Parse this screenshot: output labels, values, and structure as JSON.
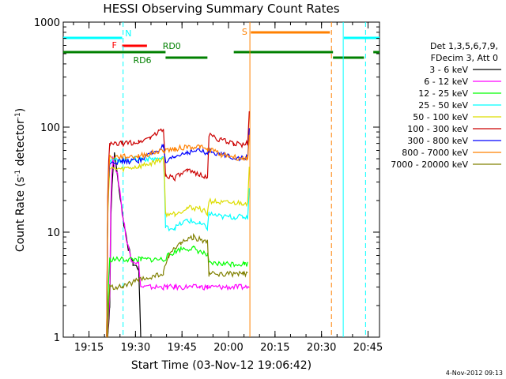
{
  "chart_data": {
    "type": "line",
    "title": "HESSI Observing Summary Count Rates",
    "xlabel": "Start Time (03-Nov-12 19:06:42)",
    "ylabel_main": "Count Rate (s",
    "ylabel_sup1": "-1",
    "ylabel_mid": " detector",
    "ylabel_sup2": "-1",
    "ylabel_end": ")",
    "y_scale": "log",
    "ylim": [
      1,
      1000
    ],
    "xlim_minutes": [
      0,
      102
    ],
    "x_ticks": [
      {
        "label": "19:15",
        "min": 8.3
      },
      {
        "label": "19:30",
        "min": 23.3
      },
      {
        "label": "19:45",
        "min": 38.3
      },
      {
        "label": "20:00",
        "min": 53.3
      },
      {
        "label": "20:15",
        "min": 68.3
      },
      {
        "label": "20:30",
        "min": 83.3
      },
      {
        "label": "20:45",
        "min": 98.3
      }
    ],
    "y_ticks": [
      {
        "label": "1",
        "value": 1
      },
      {
        "label": "10",
        "value": 10
      },
      {
        "label": "100",
        "value": 100
      },
      {
        "label": "1000",
        "value": 1000
      }
    ],
    "legend_header": [
      "Det 1,3,5,6,7,9,",
      "FDecim 3, Att 0"
    ],
    "timestamp": "4-Nov-2012 09:13",
    "series": [
      {
        "name": "3 - 6 keV",
        "color": "#000000",
        "points": [
          [
            14,
            0
          ],
          [
            15,
            2
          ],
          [
            16.5,
            55
          ],
          [
            18,
            25
          ],
          [
            19.5,
            12
          ],
          [
            21,
            7
          ],
          [
            22.5,
            5
          ],
          [
            24.3,
            4.5
          ],
          [
            25,
            0
          ]
        ]
      },
      {
        "name": "6 - 12 keV",
        "color": "#ff00ff",
        "points": [
          [
            14,
            0
          ],
          [
            15,
            2.5
          ],
          [
            16,
            50
          ],
          [
            17.5,
            35
          ],
          [
            19,
            15
          ],
          [
            20.5,
            8
          ],
          [
            22,
            5.5
          ],
          [
            24.3,
            5
          ],
          [
            25,
            3
          ],
          [
            32.3,
            3
          ],
          [
            33.5,
            3
          ],
          [
            36,
            3
          ],
          [
            40,
            3
          ],
          [
            44,
            3
          ],
          [
            46.5,
            3
          ],
          [
            47,
            3
          ],
          [
            51.5,
            3
          ],
          [
            57,
            3
          ],
          [
            60,
            3
          ]
        ]
      },
      {
        "name": "12 - 25 keV",
        "color": "#00ff00",
        "points": [
          [
            14,
            0
          ],
          [
            15,
            5.5
          ],
          [
            24.3,
            5.5
          ],
          [
            25,
            5.5
          ],
          [
            32.3,
            5.5
          ],
          [
            34,
            6
          ],
          [
            38,
            7
          ],
          [
            42,
            7
          ],
          [
            46.5,
            6
          ],
          [
            47,
            5
          ],
          [
            51,
            5
          ],
          [
            54,
            5
          ],
          [
            58.5,
            5
          ],
          [
            59.5,
            5
          ]
        ]
      },
      {
        "name": "25 - 50 keV",
        "color": "#00ffff",
        "points": [
          [
            14,
            0
          ],
          [
            15,
            48
          ],
          [
            24.3,
            50
          ],
          [
            25,
            50
          ],
          [
            32.3,
            50
          ],
          [
            33,
            11
          ],
          [
            36,
            11
          ],
          [
            40,
            13
          ],
          [
            44,
            12
          ],
          [
            46.5,
            11
          ],
          [
            47,
            15
          ],
          [
            51,
            14
          ],
          [
            55,
            14
          ],
          [
            58,
            14
          ],
          [
            59.5,
            14
          ],
          [
            60,
            25
          ]
        ]
      },
      {
        "name": "50 - 100 keV",
        "color": "#dddd00",
        "points": [
          [
            14,
            0
          ],
          [
            15,
            40
          ],
          [
            19,
            40
          ],
          [
            24.3,
            42
          ],
          [
            28,
            45
          ],
          [
            32.3,
            50
          ],
          [
            33,
            15
          ],
          [
            36,
            15
          ],
          [
            40,
            17
          ],
          [
            44,
            17
          ],
          [
            46.5,
            15
          ],
          [
            47,
            20
          ],
          [
            51,
            19
          ],
          [
            55,
            19
          ],
          [
            58,
            19
          ],
          [
            59.5,
            19
          ],
          [
            60,
            40
          ]
        ]
      },
      {
        "name": "100 - 300 keV",
        "color": "#cc0000",
        "points": [
          [
            14,
            0
          ],
          [
            15,
            68
          ],
          [
            19,
            70
          ],
          [
            24.3,
            72
          ],
          [
            28,
            80
          ],
          [
            32.3,
            95
          ],
          [
            33,
            35
          ],
          [
            36,
            33
          ],
          [
            40,
            38
          ],
          [
            44,
            36
          ],
          [
            46.5,
            32
          ],
          [
            47,
            85
          ],
          [
            51,
            75
          ],
          [
            55,
            70
          ],
          [
            58,
            68
          ],
          [
            59.5,
            70
          ],
          [
            60,
            140
          ]
        ]
      },
      {
        "name": "300 - 800 keV",
        "color": "#0000ff",
        "points": [
          [
            14,
            0
          ],
          [
            15,
            47
          ],
          [
            19,
            47
          ],
          [
            24.3,
            48
          ],
          [
            28,
            55
          ],
          [
            32.3,
            65
          ],
          [
            33,
            45
          ],
          [
            36,
            52
          ],
          [
            40,
            58
          ],
          [
            44,
            60
          ],
          [
            46.5,
            55
          ],
          [
            47,
            60
          ],
          [
            51,
            55
          ],
          [
            55,
            52
          ],
          [
            58,
            50
          ],
          [
            59.5,
            52
          ],
          [
            60,
            100
          ]
        ]
      },
      {
        "name": "800 - 7000 keV",
        "color": "#ff8000",
        "points": [
          [
            14,
            0
          ],
          [
            15,
            52
          ],
          [
            19,
            52
          ],
          [
            24.3,
            53
          ],
          [
            28,
            56
          ],
          [
            32.3,
            60
          ],
          [
            36,
            62
          ],
          [
            40,
            65
          ],
          [
            44,
            65
          ],
          [
            46.5,
            60
          ],
          [
            47,
            62
          ],
          [
            51,
            55
          ],
          [
            55,
            52
          ],
          [
            58,
            50
          ],
          [
            59.5,
            52
          ],
          [
            60,
            80
          ]
        ]
      },
      {
        "name": "7000 - 20000 keV",
        "color": "#808000",
        "points": [
          [
            14,
            0
          ],
          [
            15,
            3
          ],
          [
            19,
            3
          ],
          [
            24.3,
            3.5
          ],
          [
            25,
            3.5
          ],
          [
            32.3,
            4
          ],
          [
            34,
            6
          ],
          [
            38,
            8
          ],
          [
            42,
            9
          ],
          [
            46.5,
            8
          ],
          [
            47,
            4
          ],
          [
            51,
            4
          ],
          [
            55,
            4
          ],
          [
            58,
            4
          ],
          [
            59.5,
            4
          ]
        ]
      }
    ],
    "flags": [
      {
        "label": "N",
        "color": "#00ffff",
        "segments": [
          [
            0,
            19
          ],
          [
            90.5,
            102
          ]
        ],
        "label_min": 21
      },
      {
        "label": "F",
        "color": "#ff0000",
        "segments": [
          [
            19,
            27
          ]
        ],
        "label_min": 16.5
      },
      {
        "label": "S",
        "color": "#ff8000",
        "segments": [
          [
            60.5,
            86
          ]
        ],
        "label_min": 58.5
      },
      {
        "label": "RD0",
        "color": "#008000",
        "segments": [
          [
            0,
            33
          ],
          [
            55,
            87
          ],
          [
            100,
            102
          ]
        ],
        "label_min": 35
      },
      {
        "label": "RD6",
        "color": "#008000",
        "segments": [
          [
            33,
            46.5
          ],
          [
            87,
            97
          ]
        ],
        "label_min": 25.5
      }
    ]
  }
}
